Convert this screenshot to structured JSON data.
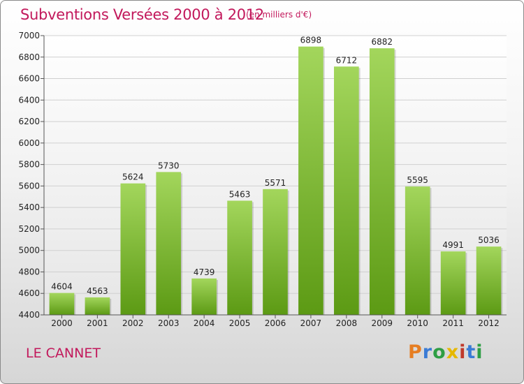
{
  "header": {
    "title": "Subventions Versées 2000 à 2012",
    "subtitle": "(en milliers d'€)"
  },
  "footer": {
    "commune": "LE CANNET",
    "logo": "Proxiti",
    "logo_colors": [
      "#e67e22",
      "#3a7bd5",
      "#2e9e44",
      "#e6b800",
      "#c0392b",
      "#3a7bd5",
      "#2e9e44"
    ]
  },
  "chart_data": {
    "type": "bar",
    "title": "Subventions Versées 2000 à 2012",
    "xlabel": "",
    "ylabel": "",
    "categories": [
      "2000",
      "2001",
      "2002",
      "2003",
      "2004",
      "2005",
      "2006",
      "2007",
      "2008",
      "2009",
      "2010",
      "2011",
      "2012"
    ],
    "values": [
      4604,
      4563,
      5624,
      5730,
      4739,
      5463,
      5571,
      6898,
      6712,
      6882,
      5595,
      4991,
      5036
    ],
    "ylim": [
      4400,
      7000
    ],
    "yticks": [
      4400,
      4600,
      4800,
      5000,
      5200,
      5400,
      5600,
      5800,
      6000,
      6200,
      6400,
      6600,
      6800,
      7000
    ],
    "grid": true,
    "bar_color_top": "#a3d65c",
    "bar_color_bottom": "#5c9a14"
  }
}
